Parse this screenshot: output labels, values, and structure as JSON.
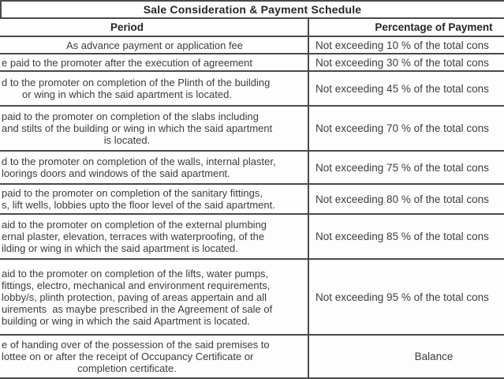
{
  "title": "Sale Consideration & Payment Schedule",
  "columns": {
    "period": "Period",
    "percentage": "Percentage of Payment"
  },
  "rows": [
    {
      "period_lines": [
        "As advance payment or application fee"
      ],
      "percentage": "Not exceeding 10 % of the total cons"
    },
    {
      "period_lines": [
        "e paid to the promoter after the execution of agreement"
      ],
      "percentage": "Not exceeding 30 % of the total cons"
    },
    {
      "period_lines": [
        "d to the promoter on completion of the Plinth of the building",
        "or wing in which the said apartment is located."
      ],
      "percentage": "Not exceeding 45 % of the total cons"
    },
    {
      "period_lines": [
        "paid to the promoter on completion of the slabs including",
        "and stilts of the building or wing in which the said apartment",
        "is located."
      ],
      "percentage": "Not exceeding 70 % of the total cons"
    },
    {
      "period_lines": [
        "d to the promoter on completion of the walls, internal plaster,",
        "loorings doors and windows of the said apartment."
      ],
      "percentage": "Not exceeding 75 % of the total cons"
    },
    {
      "period_lines": [
        "paid to the promoter on completion of the sanitary fittings,",
        "s, lift wells, lobbies upto the floor level of the said apartment."
      ],
      "percentage": "Not exceeding 80 % of the total cons"
    },
    {
      "period_lines": [
        "aid to the promoter on completion of the external plumbing",
        "ernal plaster, elevation, terraces with waterproofing, of the",
        "ilding or wing in which the said apartment is located."
      ],
      "percentage": "Not exceeding 85 % of the total cons"
    },
    {
      "period_lines": [
        "aid to the promoter on completion of the lifts, water pumps,",
        "fittings, electro, mechanical and environment requirements,",
        "lobby/s, plinth protection, paving of areas appertain and all",
        "uirements  as maybe prescribed in the Agreement of sale of",
        "building or wing in which the said Apartment is located."
      ],
      "percentage": "Not exceeding 95 % of the total cons"
    },
    {
      "period_lines": [
        "e of handing over of the possession of the said premises to",
        "lottee on or after the receipt of Occupancy Certificate or",
        "completion certificate."
      ],
      "percentage": "Balance"
    }
  ],
  "colors": {
    "border": "#4a4a4a",
    "text": "#3d3d3d",
    "heading_text": "#262626",
    "background": "#fdfdfd"
  }
}
